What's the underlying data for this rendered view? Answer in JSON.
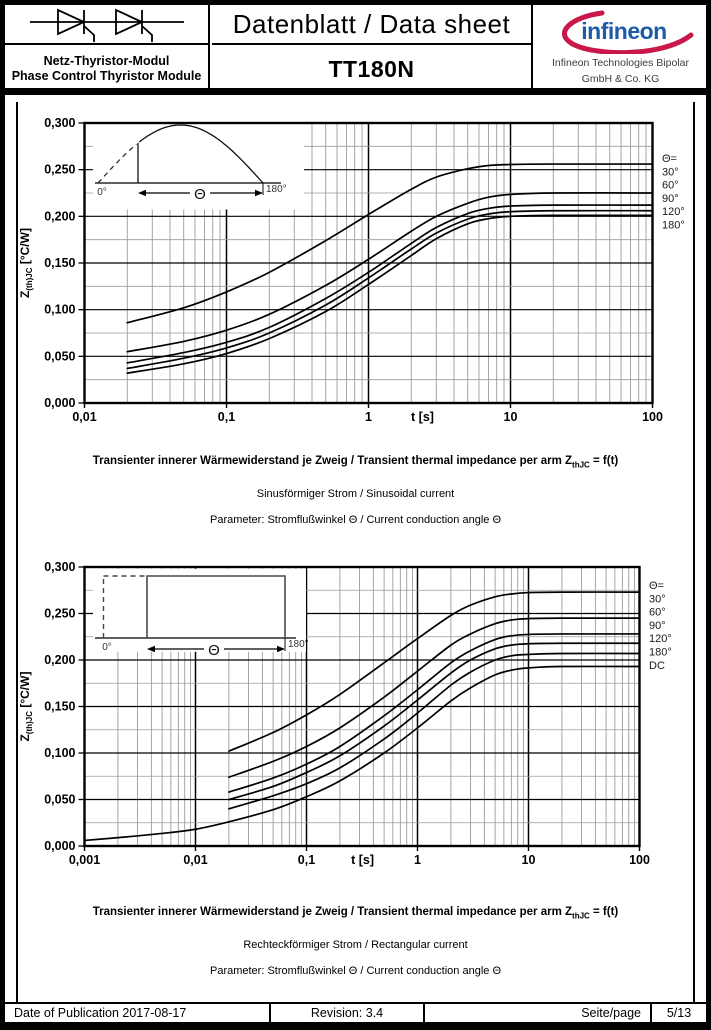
{
  "header": {
    "product_family_line1": "Netz-Thyristor-Modul",
    "product_family_line2": "Phase Control Thyristor Module",
    "doc_title": "Datenblatt / Data sheet",
    "part_number": "TT180N",
    "logo_text": "infineon",
    "company_line1": "Infineon Technologies Bipolar",
    "company_line2": "GmbH & Co. KG",
    "logo_blue": "#1d5ba9",
    "logo_red": "#c9174a"
  },
  "footer": {
    "date": "Date of Publication 2017-08-17",
    "revision": "Revision: 3.4",
    "page_label": "Seite/page",
    "page_value": "5/13"
  },
  "chart_data": [
    {
      "type": "line",
      "x_scale": "log",
      "x_min": 0.01,
      "x_max": 100,
      "y_min": 0,
      "y_max": 0.3,
      "y_major": 0.05,
      "y_minor": 0.025,
      "x_axis_label": "t [s]",
      "x_tick_labels": [
        {
          "t": 0.01,
          "label": "0,01"
        },
        {
          "t": 0.1,
          "label": "0,1"
        },
        {
          "t": 1,
          "label": "1"
        },
        {
          "t": 10,
          "label": "10"
        },
        {
          "t": 100,
          "label": "100"
        }
      ],
      "y_tick_labels": [
        "0,300",
        "0,250",
        "0,200",
        "0,150",
        "0,100",
        "0,050",
        "0,000"
      ],
      "y_axis_label": {
        "main": "Z",
        "sub": "(th)JC",
        "unit": " [°C/W]"
      },
      "legend": [
        "Θ=",
        "30°",
        "60°",
        "90°",
        "120°",
        "180°"
      ],
      "grid": true,
      "legend_position": "right",
      "series": [
        {
          "name": "30°",
          "points": [
            [
              0.02,
              0.086
            ],
            [
              0.05,
              0.102
            ],
            [
              0.1,
              0.119
            ],
            [
              0.2,
              0.14
            ],
            [
              0.5,
              0.174
            ],
            [
              1,
              0.202
            ],
            [
              2,
              0.229
            ],
            [
              3,
              0.242
            ],
            [
              5,
              0.251
            ],
            [
              7,
              0.2545
            ],
            [
              10,
              0.2555
            ],
            [
              20,
              0.256
            ],
            [
              100,
              0.256
            ]
          ]
        },
        {
          "name": "60°",
          "points": [
            [
              0.02,
              0.055
            ],
            [
              0.05,
              0.066
            ],
            [
              0.1,
              0.078
            ],
            [
              0.2,
              0.095
            ],
            [
              0.5,
              0.126
            ],
            [
              1,
              0.154
            ],
            [
              2,
              0.184
            ],
            [
              3,
              0.2
            ],
            [
              5,
              0.214
            ],
            [
              7,
              0.2205
            ],
            [
              10,
              0.2235
            ],
            [
              20,
              0.225
            ],
            [
              100,
              0.225
            ]
          ]
        },
        {
          "name": "90°",
          "points": [
            [
              0.02,
              0.043
            ],
            [
              0.05,
              0.054
            ],
            [
              0.1,
              0.065
            ],
            [
              0.2,
              0.081
            ],
            [
              0.5,
              0.112
            ],
            [
              1,
              0.14
            ],
            [
              2,
              0.171
            ],
            [
              3,
              0.188
            ],
            [
              5,
              0.203
            ],
            [
              7,
              0.2085
            ],
            [
              10,
              0.211
            ],
            [
              20,
              0.212
            ],
            [
              100,
              0.212
            ]
          ]
        },
        {
          "name": "120°",
          "points": [
            [
              0.02,
              0.037
            ],
            [
              0.05,
              0.048
            ],
            [
              0.1,
              0.059
            ],
            [
              0.2,
              0.075
            ],
            [
              0.5,
              0.105
            ],
            [
              1,
              0.134
            ],
            [
              2,
              0.165
            ],
            [
              3,
              0.182
            ],
            [
              5,
              0.197
            ],
            [
              7,
              0.2025
            ],
            [
              10,
              0.205
            ],
            [
              20,
              0.206
            ],
            [
              100,
              0.206
            ]
          ]
        },
        {
          "name": "180°",
          "points": [
            [
              0.02,
              0.032
            ],
            [
              0.05,
              0.042
            ],
            [
              0.1,
              0.053
            ],
            [
              0.2,
              0.069
            ],
            [
              0.5,
              0.098
            ],
            [
              1,
              0.127
            ],
            [
              2,
              0.158
            ],
            [
              3,
              0.176
            ],
            [
              5,
              0.192
            ],
            [
              7,
              0.1975
            ],
            [
              10,
              0.2
            ],
            [
              20,
              0.201
            ],
            [
              100,
              0.201
            ]
          ]
        }
      ],
      "inset": {
        "shape": "half-sine",
        "label_left": "0°",
        "label_right": "180°",
        "label_theta": "Θ"
      },
      "caption": {
        "bold_prefix": "Transienter innerer Wärmewiderstand je Zweig / Transient thermal impedance per arm Z",
        "bold_sub": "thJC",
        "bold_suffix": " = f(t)",
        "line2": "Sinusförmiger Strom / Sinusoidal current",
        "line3": "Parameter: Stromflußwinkel Θ  / Current conduction angle Θ"
      }
    },
    {
      "type": "line",
      "x_scale": "log",
      "x_min": 0.001,
      "x_max": 100,
      "y_min": 0,
      "y_max": 0.3,
      "y_major": 0.05,
      "y_minor": 0.025,
      "x_axis_label": "t [s]",
      "x_tick_labels": [
        {
          "t": 0.001,
          "label": "0,001"
        },
        {
          "t": 0.01,
          "label": "0,01"
        },
        {
          "t": 0.1,
          "label": "0,1"
        },
        {
          "t": 1,
          "label": "1"
        },
        {
          "t": 10,
          "label": "10"
        },
        {
          "t": 100,
          "label": "100"
        }
      ],
      "y_tick_labels": [
        "0,300",
        "0,250",
        "0,200",
        "0,150",
        "0,100",
        "0,050",
        "0,000"
      ],
      "y_axis_label": {
        "main": "Z",
        "sub": "(th)JC",
        "unit": " [°C/W]"
      },
      "legend": [
        "Θ=",
        "30°",
        "60°",
        "90°",
        "120°",
        "180°",
        "DC"
      ],
      "grid": true,
      "legend_position": "right",
      "series": [
        {
          "name": "30°",
          "points": [
            [
              0.02,
              0.102
            ],
            [
              0.05,
              0.122
            ],
            [
              0.1,
              0.141
            ],
            [
              0.2,
              0.163
            ],
            [
              0.5,
              0.197
            ],
            [
              1,
              0.223
            ],
            [
              2,
              0.248
            ],
            [
              3,
              0.259
            ],
            [
              5,
              0.268
            ],
            [
              7,
              0.271
            ],
            [
              10,
              0.2725
            ],
            [
              20,
              0.273
            ],
            [
              100,
              0.273
            ]
          ]
        },
        {
          "name": "60°",
          "points": [
            [
              0.02,
              0.074
            ],
            [
              0.05,
              0.091
            ],
            [
              0.1,
              0.107
            ],
            [
              0.2,
              0.127
            ],
            [
              0.5,
              0.16
            ],
            [
              1,
              0.188
            ],
            [
              2,
              0.216
            ],
            [
              3,
              0.228
            ],
            [
              5,
              0.239
            ],
            [
              7,
              0.243
            ],
            [
              10,
              0.2445
            ],
            [
              20,
              0.245
            ],
            [
              100,
              0.245
            ]
          ]
        },
        {
          "name": "90°",
          "points": [
            [
              0.02,
              0.058
            ],
            [
              0.05,
              0.073
            ],
            [
              0.1,
              0.088
            ],
            [
              0.2,
              0.107
            ],
            [
              0.5,
              0.14
            ],
            [
              1,
              0.168
            ],
            [
              2,
              0.197
            ],
            [
              3,
              0.21
            ],
            [
              5,
              0.222
            ],
            [
              7,
              0.226
            ],
            [
              10,
              0.2275
            ],
            [
              20,
              0.228
            ],
            [
              100,
              0.228
            ]
          ]
        },
        {
          "name": "120°",
          "points": [
            [
              0.02,
              0.05
            ],
            [
              0.05,
              0.064
            ],
            [
              0.1,
              0.079
            ],
            [
              0.2,
              0.097
            ],
            [
              0.5,
              0.129
            ],
            [
              1,
              0.157
            ],
            [
              2,
              0.186
            ],
            [
              3,
              0.2
            ],
            [
              5,
              0.212
            ],
            [
              7,
              0.216
            ],
            [
              10,
              0.2175
            ],
            [
              20,
              0.218
            ],
            [
              100,
              0.218
            ]
          ]
        },
        {
          "name": "180°",
          "points": [
            [
              0.02,
              0.04
            ],
            [
              0.05,
              0.054
            ],
            [
              0.1,
              0.067
            ],
            [
              0.2,
              0.084
            ],
            [
              0.5,
              0.115
            ],
            [
              1,
              0.143
            ],
            [
              2,
              0.173
            ],
            [
              3,
              0.187
            ],
            [
              5,
              0.2
            ],
            [
              7,
              0.2045
            ],
            [
              10,
              0.206
            ],
            [
              20,
              0.207
            ],
            [
              100,
              0.207
            ]
          ]
        },
        {
          "name": "DC",
          "points": [
            [
              0.001,
              0.006
            ],
            [
              0.002,
              0.009
            ],
            [
              0.005,
              0.0135
            ],
            [
              0.01,
              0.018
            ],
            [
              0.02,
              0.026
            ],
            [
              0.05,
              0.039
            ],
            [
              0.1,
              0.053
            ],
            [
              0.2,
              0.07
            ],
            [
              0.5,
              0.1
            ],
            [
              1,
              0.127
            ],
            [
              2,
              0.156
            ],
            [
              3,
              0.17
            ],
            [
              5,
              0.184
            ],
            [
              7,
              0.189
            ],
            [
              10,
              0.1915
            ],
            [
              20,
              0.193
            ],
            [
              100,
              0.193
            ]
          ]
        }
      ],
      "inset": {
        "shape": "rectangular",
        "label_left": "0°",
        "label_right": "180°",
        "label_theta": "Θ"
      },
      "caption": {
        "bold_prefix": "Transienter innerer Wärmewiderstand je Zweig / Transient thermal impedance per arm Z",
        "bold_sub": "thJC",
        "bold_suffix": " = f(t)",
        "line2": "Rechteckförmiger Strom / Rectangular current",
        "line3": "Parameter: Stromflußwinkel Θ  / Current conduction angle Θ"
      }
    }
  ]
}
